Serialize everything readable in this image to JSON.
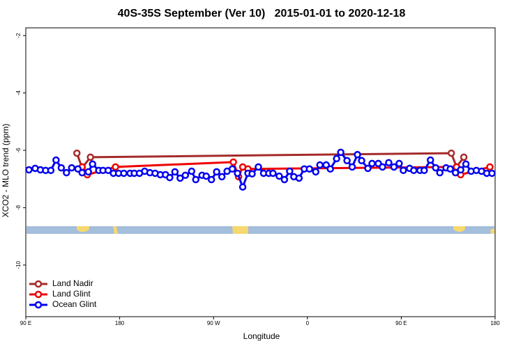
{
  "chart_data": {
    "type": "line",
    "title": "40S-35S September (Ver 10)   2015-01-01 to 2020-12-18",
    "x_label": "Longitude",
    "y_label": "XCO2 - MLO trend (ppm)",
    "xlim": [
      90,
      540
    ],
    "ylim": [
      -11.8,
      -1.73
    ],
    "xticks": [
      {
        "value": 90,
        "label": "90 E"
      },
      180,
      {
        "value": 270,
        "label": "90 W"
      },
      {
        "value": 360,
        "label": "0"
      },
      {
        "value": 450,
        "label": "90 E"
      },
      {
        "value": 540,
        "label": "180"
      }
    ],
    "yticks": [
      -2,
      -4,
      -6,
      -8,
      -10
    ],
    "legend": "bottom-left",
    "series": [
      {
        "name": "Land Nadir",
        "color": "#a52a2a",
        "x": [
          139,
          144,
          152,
          498,
          503,
          510
        ],
        "values": [
          -6.1,
          -6.61,
          -6.24,
          -6.1,
          -6.58,
          -6.24
        ]
      },
      {
        "name": "Land Glint",
        "color": "#ee0000",
        "x": [
          144,
          149,
          176,
          289,
          294,
          298,
          303,
          503,
          507,
          535
        ],
        "values": [
          -6.58,
          -6.85,
          -6.58,
          -6.41,
          -6.92,
          -6.58,
          -6.65,
          -6.58,
          -6.85,
          -6.58
        ]
      },
      {
        "name": "Ocean Glint",
        "color": "#0000ee",
        "x": [
          93,
          99,
          104,
          109,
          114,
          119,
          124,
          129,
          134,
          140,
          144,
          150,
          154,
          160,
          164,
          169,
          174,
          179,
          184,
          190,
          194,
          199,
          204,
          209,
          214,
          219,
          224,
          228,
          233,
          238,
          243,
          249,
          253,
          259,
          263,
          268,
          273,
          278,
          283,
          288,
          293,
          298,
          303,
          307,
          313,
          318,
          323,
          327,
          333,
          338,
          343,
          347,
          352,
          357,
          362,
          368,
          372,
          378,
          382,
          388,
          392,
          398,
          403,
          408,
          412,
          418,
          422,
          428,
          432,
          438,
          443,
          448,
          452,
          458,
          462,
          468,
          472,
          478,
          483,
          487,
          493,
          497,
          502,
          507,
          512,
          517,
          522,
          527,
          532,
          537
        ],
        "values": [
          -6.68,
          -6.63,
          -6.68,
          -6.7,
          -6.7,
          -6.34,
          -6.61,
          -6.78,
          -6.61,
          -6.65,
          -6.78,
          -6.75,
          -6.48,
          -6.7,
          -6.7,
          -6.7,
          -6.8,
          -6.8,
          -6.8,
          -6.8,
          -6.8,
          -6.8,
          -6.73,
          -6.78,
          -6.8,
          -6.85,
          -6.85,
          -6.95,
          -6.75,
          -6.97,
          -6.87,
          -6.73,
          -7.02,
          -6.87,
          -6.9,
          -7.02,
          -6.75,
          -6.92,
          -6.73,
          -6.65,
          -6.8,
          -7.28,
          -6.8,
          -6.82,
          -6.58,
          -6.8,
          -6.8,
          -6.8,
          -6.9,
          -7.02,
          -6.73,
          -6.92,
          -6.97,
          -6.65,
          -6.65,
          -6.75,
          -6.51,
          -6.51,
          -6.65,
          -6.29,
          -6.07,
          -6.36,
          -6.58,
          -6.15,
          -6.36,
          -6.63,
          -6.46,
          -6.46,
          -6.58,
          -6.43,
          -6.58,
          -6.46,
          -6.7,
          -6.63,
          -6.7,
          -6.7,
          -6.7,
          -6.34,
          -6.61,
          -6.78,
          -6.61,
          -6.65,
          -6.78,
          -6.68,
          -6.48,
          -6.73,
          -6.7,
          -6.73,
          -6.8,
          -6.8
        ]
      }
    ]
  }
}
